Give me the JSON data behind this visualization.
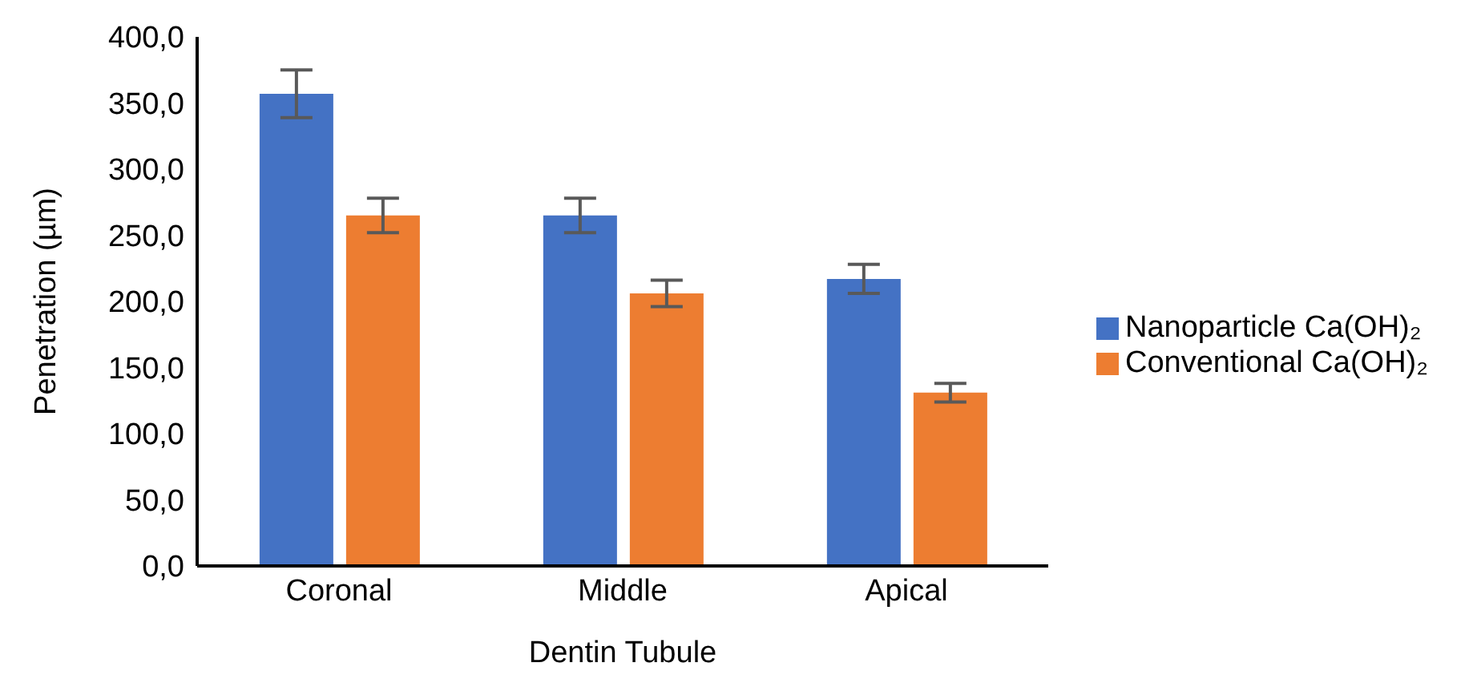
{
  "chart_data": {
    "type": "bar",
    "xlabel": "Dentin Tubule",
    "ylabel": "Penetration (µm)",
    "categories": [
      "Coronal",
      "Middle",
      "Apical"
    ],
    "series": [
      {
        "name": "Nanoparticle Ca(OH)₂",
        "color": "#4472c4",
        "values": [
          357,
          265,
          217
        ],
        "errors": [
          18,
          13,
          11
        ]
      },
      {
        "name": "Conventional Ca(OH)₂",
        "color": "#ed7d31",
        "values": [
          265,
          206,
          131
        ],
        "errors": [
          13,
          10,
          7
        ]
      }
    ],
    "ylim": [
      0,
      400
    ],
    "yticks": [
      {
        "value": 0,
        "label": "0,0"
      },
      {
        "value": 50,
        "label": "50,0"
      },
      {
        "value": 100,
        "label": "100,0"
      },
      {
        "value": 150,
        "label": "150,0"
      },
      {
        "value": 200,
        "label": "200,0"
      },
      {
        "value": 250,
        "label": "250,0"
      },
      {
        "value": 300,
        "label": "300,0"
      },
      {
        "value": 350,
        "label": "350,0"
      },
      {
        "value": 400,
        "label": "400,0"
      }
    ],
    "grid": false,
    "legend": "right"
  }
}
